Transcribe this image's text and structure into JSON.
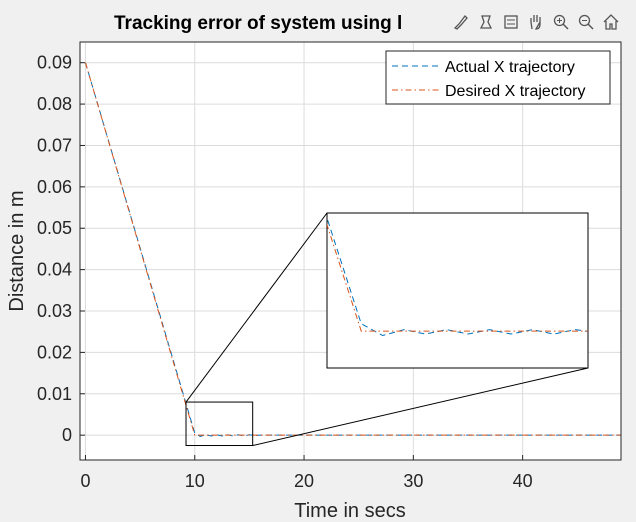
{
  "chart_data": {
    "type": "line",
    "title": "Tracking error of system using l",
    "xlabel": "Time in secs",
    "ylabel": "Distance in m",
    "xlim": [
      -0.5,
      49
    ],
    "ylim": [
      -0.006,
      0.095
    ],
    "xticks": [
      0,
      10,
      20,
      30,
      40
    ],
    "xtick_labels": [
      "0",
      "10",
      "20",
      "30",
      "40"
    ],
    "yticks": [
      0,
      0.01,
      0.02,
      0.03,
      0.04,
      0.05,
      0.06,
      0.07,
      0.08,
      0.09
    ],
    "ytick_labels": [
      "0",
      "0.01",
      "0.02",
      "0.03",
      "0.04",
      "0.05",
      "0.06",
      "0.07",
      "0.08",
      "0.09"
    ],
    "grid": true,
    "legend_position": "top-right",
    "series": [
      {
        "name": "Actual X trajectory",
        "color": "#0072BD",
        "style": "dashed",
        "x": [
          0,
          10,
          10.5,
          11,
          11.5,
          12,
          12.5,
          13,
          13.5,
          14,
          14.5,
          15,
          15.5,
          16,
          20,
          30,
          40,
          49
        ],
        "y": [
          0.09,
          0.0005,
          -0.0003,
          0.0001,
          -0.0002,
          0.0001,
          -0.0002,
          0.0001,
          -0.0002,
          0.0001,
          -0.0002,
          0.0001,
          -0.0001,
          0.0,
          0.0,
          0.0,
          0.0,
          0.0
        ]
      },
      {
        "name": "Desired X trajectory",
        "color": "#D95319",
        "style": "dashdot",
        "x": [
          0,
          10,
          20,
          30,
          40,
          49
        ],
        "y": [
          0.09,
          0.0,
          0.0,
          0.0,
          0.0,
          0.0
        ]
      }
    ],
    "inset": {
      "source_xlim": [
        9.2,
        15.3
      ],
      "source_ylim": [
        -0.0025,
        0.008
      ]
    }
  },
  "toolbar": {
    "icons": [
      "brush-icon",
      "data-tip-icon",
      "legend-icon",
      "pan-icon",
      "zoom-in-icon",
      "zoom-out-icon",
      "home-icon"
    ]
  }
}
